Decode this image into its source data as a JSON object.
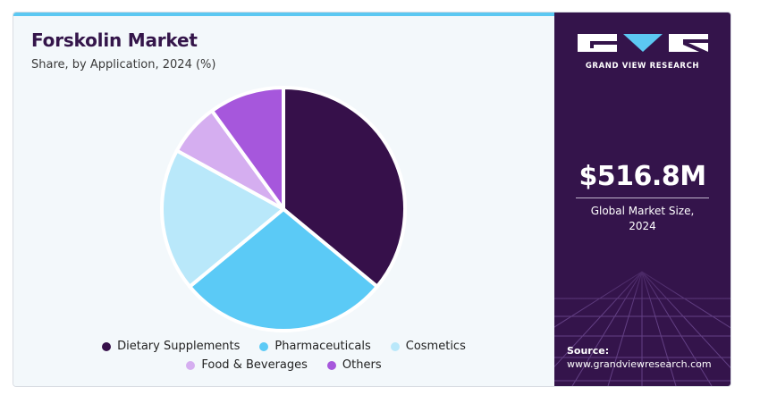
{
  "header": {
    "title": "Forskolin Market",
    "subtitle": "Share, by Application, 2024 (%)"
  },
  "brand": {
    "name": "GRAND VIEW RESEARCH",
    "icon": "gvr-logo"
  },
  "stat": {
    "value": "$516.8M",
    "label_line1": "Global Market Size,",
    "label_line2": "2024"
  },
  "source": {
    "label": "Source:",
    "url": "www.grandviewresearch.com"
  },
  "colors": {
    "accent_bar": "#5cc8f2",
    "sidebar_bg": "#34144b",
    "title": "#34154a"
  },
  "chart_data": {
    "type": "pie",
    "title": "Forskolin Market",
    "subtitle": "Share, by Application, 2024 (%)",
    "legend_position": "bottom",
    "slices": [
      {
        "label": "Dietary Supplements",
        "value": 36,
        "color": "#36104a"
      },
      {
        "label": "Pharmaceuticals",
        "value": 28,
        "color": "#5bcaf6"
      },
      {
        "label": "Cosmetics",
        "value": 19,
        "color": "#b9e8fa"
      },
      {
        "label": "Food & Beverages",
        "value": 7,
        "color": "#d5aef0"
      },
      {
        "label": "Others",
        "value": 10,
        "color": "#a657dc"
      }
    ]
  }
}
